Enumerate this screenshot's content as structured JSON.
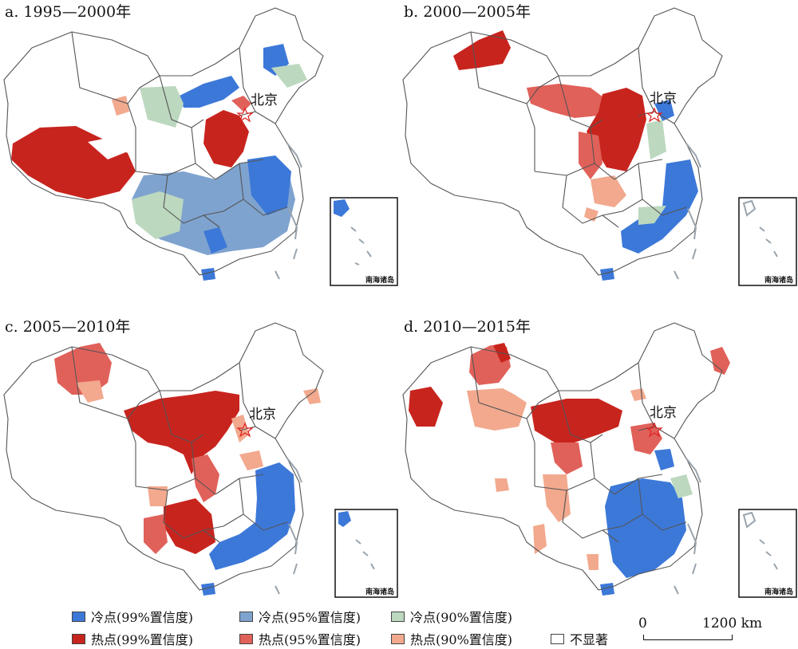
{
  "panels": [
    {
      "id": "a",
      "title": "a. 1995—2000年",
      "capital_label": "北京",
      "inset_label": "南海诸岛"
    },
    {
      "id": "b",
      "title": "b. 2000—2005年",
      "capital_label": "北京",
      "inset_label": "南海诸岛"
    },
    {
      "id": "c",
      "title": "c. 2005—2010年",
      "capital_label": "北京",
      "inset_label": "南海诸岛"
    },
    {
      "id": "d",
      "title": "d. 2010—2015年",
      "capital_label": "北京",
      "inset_label": "南海诸岛"
    }
  ],
  "legend": [
    {
      "label": "冷点(99%置信度)",
      "color": "#3c78d8"
    },
    {
      "label": "冷点(95%置信度)",
      "color": "#7fa3cf"
    },
    {
      "label": "冷点(90%置信度)",
      "color": "#bcd8bf"
    },
    {
      "label": "热点(99%置信度)",
      "color": "#c8241e"
    },
    {
      "label": "热点(95%置信度)",
      "color": "#e0615a"
    },
    {
      "label": "热点(90%置信度)",
      "color": "#f2a98e"
    },
    {
      "label": "不显著",
      "color": "#ffffff"
    }
  ],
  "scalebar": {
    "zero": "0",
    "max": "1200 km"
  },
  "border_color": "#555555",
  "coast_color": "#9aa4ad",
  "capital_color": "#e02020"
}
